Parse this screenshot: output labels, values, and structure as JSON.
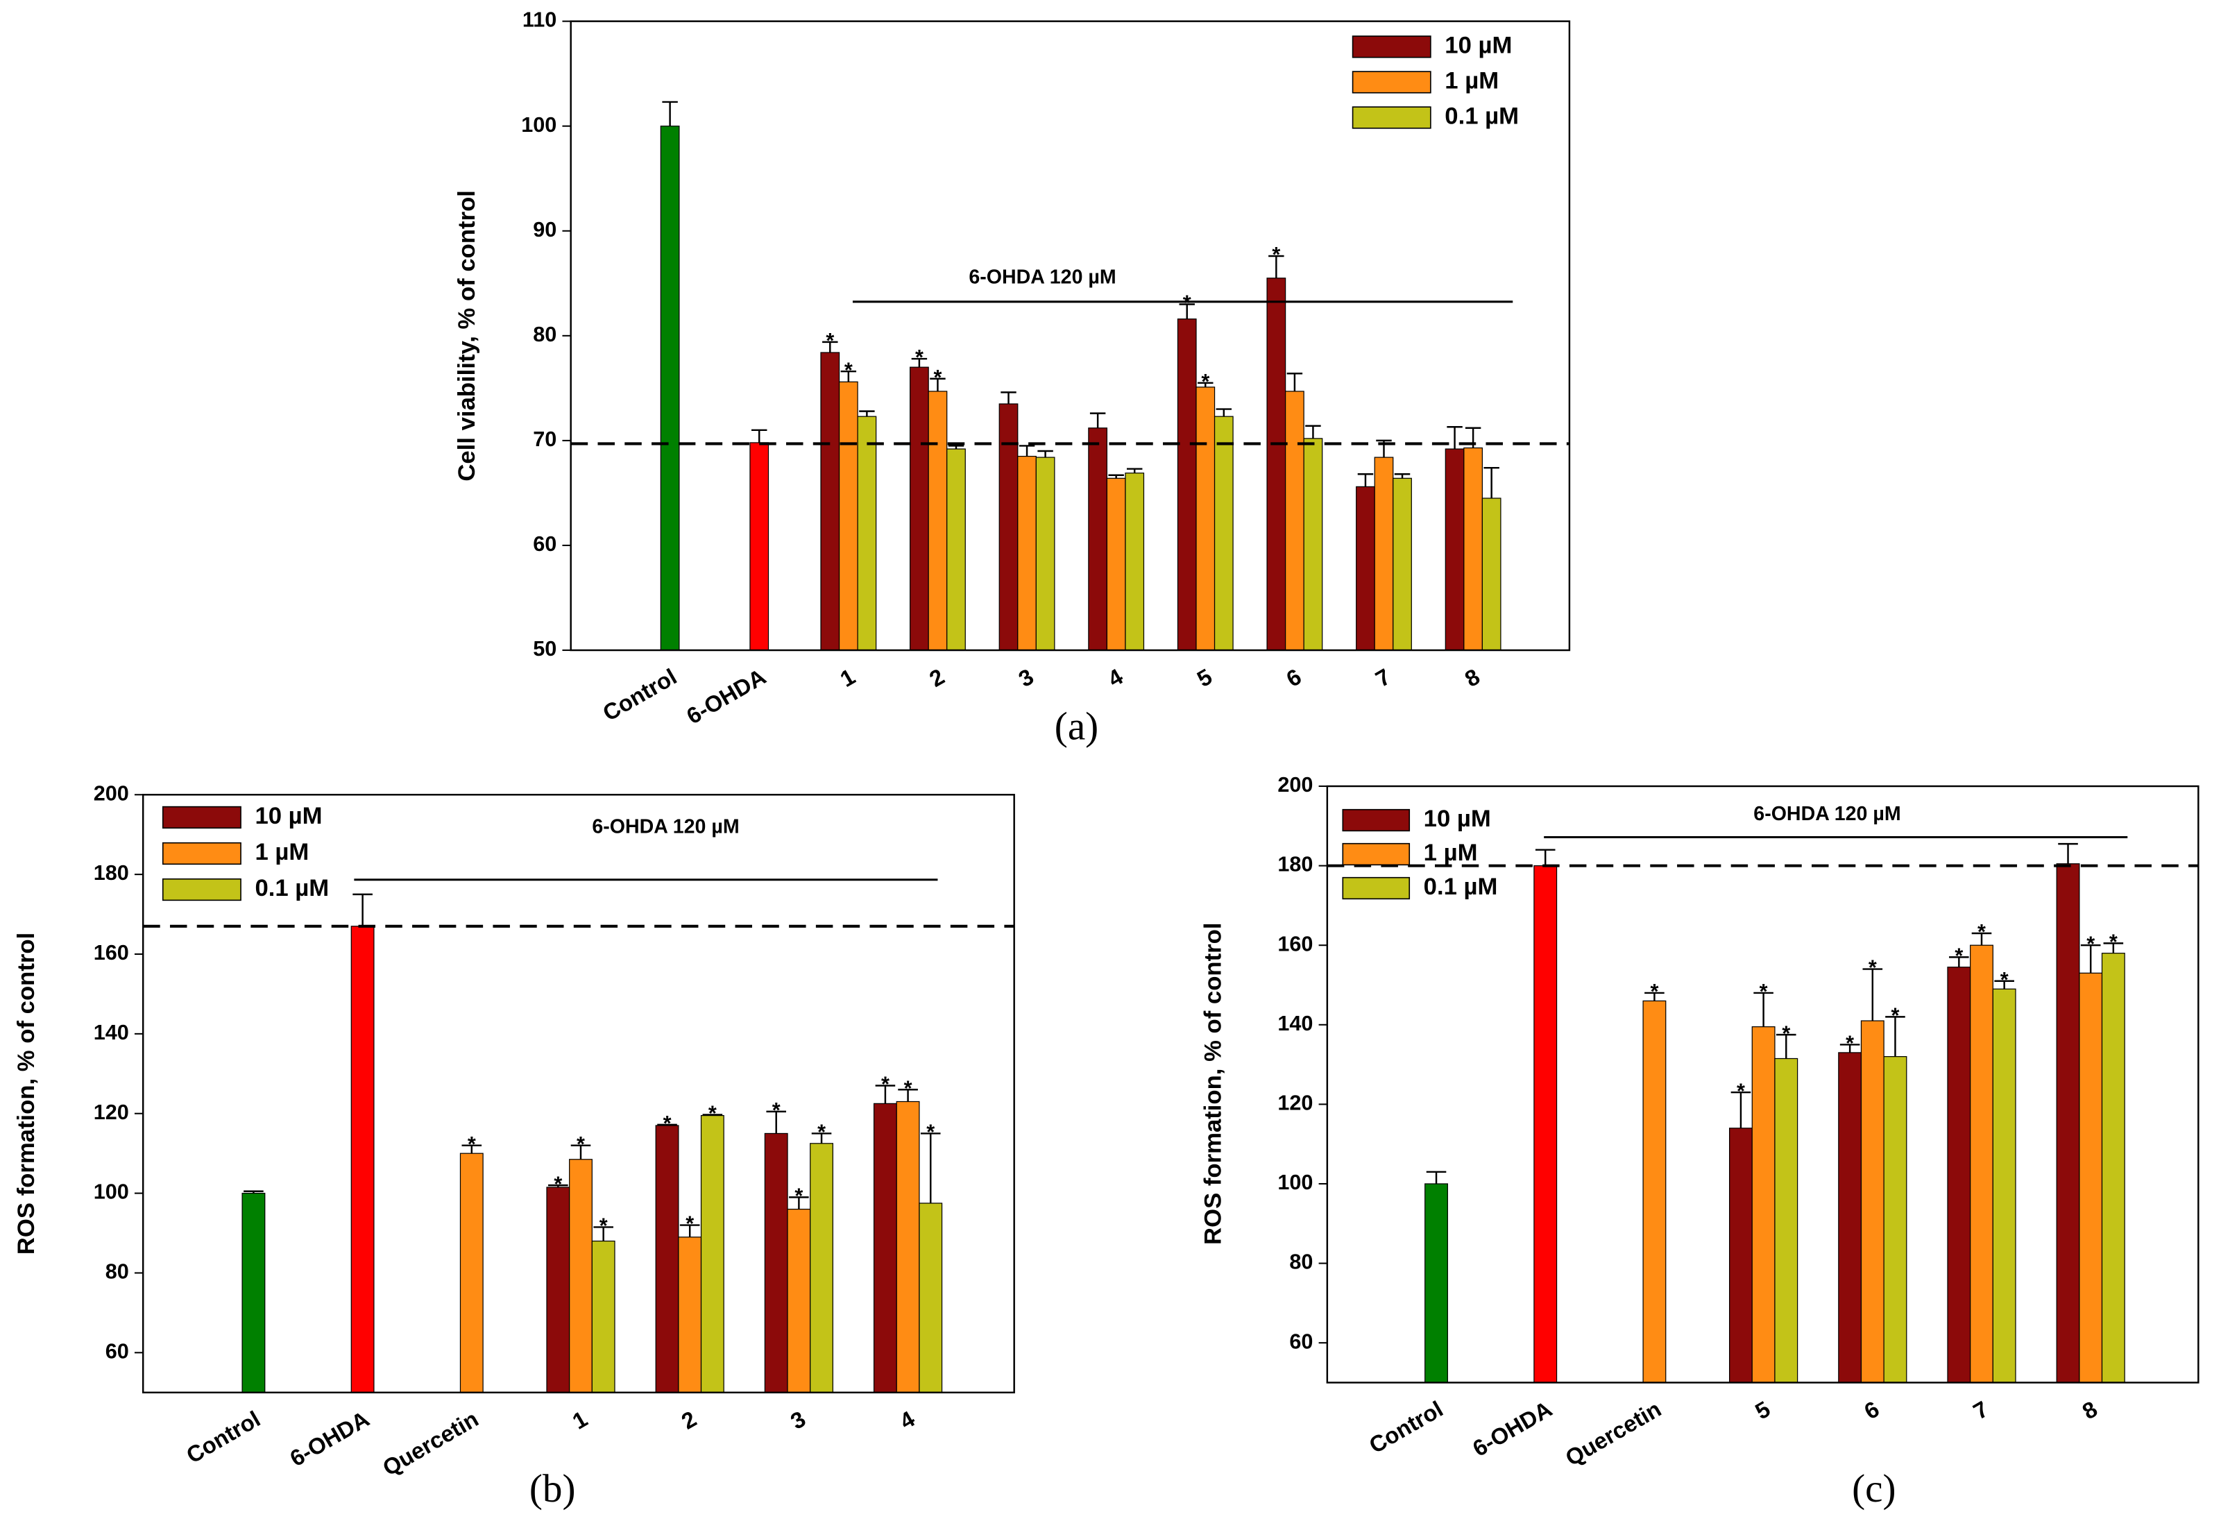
{
  "chart_data": [
    {
      "type": "bar",
      "label": "(a)",
      "ylabel": "Cell viability, % of control",
      "annotation": "6-OHDA 120 µM",
      "categories": [
        "Control",
        "6-OHDA",
        "1",
        "2",
        "3",
        "4",
        "5",
        "6",
        "7",
        "8"
      ],
      "values": [
        100,
        69.8,
        null,
        null,
        null,
        null,
        null,
        null,
        null,
        null
      ],
      "errors": [
        2.3,
        1.2,
        null,
        null,
        null,
        null,
        null,
        null,
        null,
        null
      ],
      "colors": [
        "#008000",
        "#ff0000",
        null,
        null,
        null,
        null,
        null,
        null,
        null,
        null
      ],
      "markers": [
        null,
        null,
        null,
        null,
        null,
        null,
        null,
        null,
        null,
        null
      ],
      "series": [
        {
          "name": "10 µM",
          "color": "#8c0a0a",
          "values": [
            null,
            null,
            78.4,
            77.0,
            73.5,
            71.2,
            81.6,
            85.5,
            65.6,
            69.2
          ],
          "errors": [
            null,
            null,
            1.0,
            0.8,
            1.1,
            1.4,
            1.4,
            2.1,
            1.2,
            2.1
          ],
          "markers": [
            null,
            null,
            "*",
            "*",
            null,
            null,
            "*",
            "*",
            null,
            null
          ]
        },
        {
          "name": "1 µM",
          "color": "#ff8c14",
          "values": [
            null,
            null,
            75.6,
            74.7,
            68.5,
            66.4,
            75.1,
            74.7,
            68.4,
            69.3
          ],
          "errors": [
            null,
            null,
            1.0,
            1.2,
            1.0,
            0.3,
            0.4,
            1.7,
            1.6,
            1.9
          ],
          "markers": [
            null,
            null,
            "*",
            "*",
            null,
            null,
            "*",
            null,
            null,
            null
          ]
        },
        {
          "name": "0.1 µM",
          "color": "#c3c318",
          "values": [
            null,
            null,
            72.3,
            69.2,
            68.4,
            66.9,
            72.3,
            70.2,
            66.4,
            64.5
          ],
          "errors": [
            null,
            null,
            0.5,
            0.3,
            0.6,
            0.4,
            0.7,
            1.2,
            0.4,
            2.9
          ],
          "markers": [
            null,
            null,
            null,
            null,
            null,
            null,
            null,
            null,
            null,
            null
          ]
        }
      ],
      "reference_line": 69.7,
      "ylim": [
        50,
        110
      ],
      "yticks": [
        50,
        60,
        70,
        80,
        90,
        100,
        110
      ],
      "legend": "upper right"
    },
    {
      "type": "bar",
      "label": "(b)",
      "ylabel": "ROS formation, % of control",
      "annotation": "6-OHDA 120 µM",
      "categories": [
        "Control",
        "6-OHDA",
        "Quercetin",
        "1",
        "2",
        "3",
        "4"
      ],
      "values": [
        100,
        167,
        110,
        null,
        null,
        null,
        null
      ],
      "errors": [
        0.5,
        8,
        2,
        null,
        null,
        null,
        null
      ],
      "colors": [
        "#008000",
        "#ff0000",
        "#ff8c14",
        null,
        null,
        null,
        null
      ],
      "markers": [
        null,
        null,
        "*",
        null,
        null,
        null,
        null
      ],
      "series": [
        {
          "name": "10 µM",
          "color": "#8c0a0a",
          "values": [
            null,
            null,
            null,
            101.5,
            117,
            115,
            122.5
          ],
          "errors": [
            null,
            null,
            null,
            0.5,
            0.2,
            5.5,
            4.5
          ],
          "markers": [
            null,
            null,
            null,
            "*",
            "*",
            "*",
            "*"
          ]
        },
        {
          "name": "1 µM",
          "color": "#ff8c14",
          "values": [
            null,
            null,
            null,
            108.5,
            89,
            96,
            123
          ],
          "errors": [
            null,
            null,
            null,
            3.5,
            3,
            3,
            3
          ],
          "markers": [
            null,
            null,
            null,
            "*",
            "*",
            "*",
            "*"
          ]
        },
        {
          "name": "0.1 µM",
          "color": "#c3c318",
          "values": [
            null,
            null,
            null,
            88,
            119.5,
            112.5,
            97.5
          ],
          "errors": [
            null,
            null,
            null,
            3.5,
            0.2,
            2.5,
            17.5
          ],
          "markers": [
            null,
            null,
            null,
            "*",
            "*",
            "*",
            "*"
          ]
        }
      ],
      "reference_line": 167,
      "ylim": [
        50,
        200
      ],
      "yticks": [
        60,
        80,
        100,
        120,
        140,
        160,
        180,
        200
      ],
      "legend": "upper left"
    },
    {
      "type": "bar",
      "label": "(c)",
      "ylabel": "ROS formation, % of control",
      "annotation": "6-OHDA 120 µM",
      "categories": [
        "Control",
        "6-OHDA",
        "Quercetin",
        "5",
        "6",
        "7",
        "8"
      ],
      "values": [
        100,
        180,
        146,
        null,
        null,
        null,
        null
      ],
      "errors": [
        3,
        4,
        2,
        null,
        null,
        null,
        null
      ],
      "colors": [
        "#008000",
        "#ff0000",
        "#ff8c14",
        null,
        null,
        null,
        null
      ],
      "markers": [
        null,
        null,
        "*",
        null,
        null,
        null,
        null
      ],
      "series": [
        {
          "name": "10 µM",
          "color": "#8c0a0a",
          "values": [
            null,
            null,
            null,
            114,
            133,
            154.5,
            180.5
          ],
          "errors": [
            null,
            null,
            null,
            9,
            2,
            2.5,
            5
          ],
          "markers": [
            null,
            null,
            null,
            "*",
            "*",
            "*",
            null
          ]
        },
        {
          "name": "1 µM",
          "color": "#ff8c14",
          "values": [
            null,
            null,
            null,
            139.5,
            141,
            160,
            153
          ],
          "errors": [
            null,
            null,
            null,
            8.5,
            13,
            3,
            7
          ],
          "markers": [
            null,
            null,
            null,
            "*",
            "*",
            "*",
            "*"
          ]
        },
        {
          "name": "0.1 µM",
          "color": "#c3c318",
          "values": [
            null,
            null,
            null,
            131.5,
            132,
            149,
            158
          ],
          "errors": [
            null,
            null,
            null,
            6,
            10,
            2,
            2.5
          ],
          "markers": [
            null,
            null,
            null,
            "*",
            "*",
            "*",
            "*"
          ]
        }
      ],
      "reference_line": 180,
      "ylim": [
        50,
        200
      ],
      "yticks": [
        60,
        80,
        100,
        120,
        140,
        160,
        180,
        200
      ],
      "legend": "upper left"
    }
  ]
}
